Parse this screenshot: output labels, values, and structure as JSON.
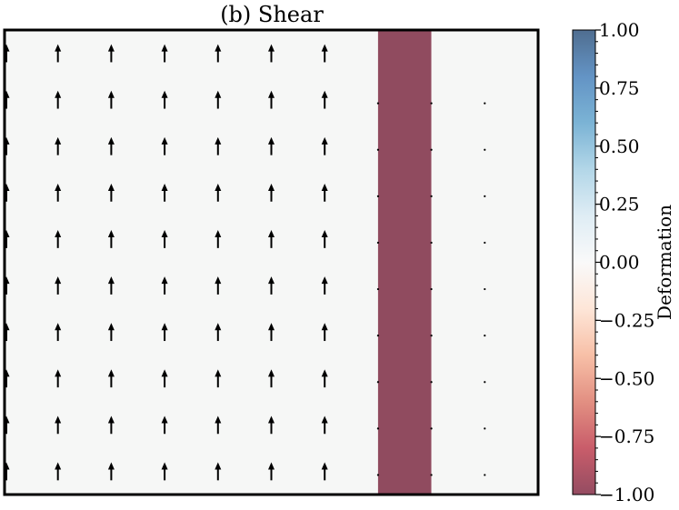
{
  "chart_data": {
    "type": "quiver",
    "title": "(b) Shear",
    "xlabel": "",
    "ylabel": "",
    "background_field": {
      "columns": [
        {
          "x_range": [
            0,
            7
          ],
          "value": 0.0
        },
        {
          "x_range": [
            7,
            8
          ],
          "value": -1.0
        },
        {
          "x_range": [
            8,
            10
          ],
          "value": 0.0
        }
      ]
    },
    "xlim": [
      0,
      10
    ],
    "ylim": [
      0,
      10
    ],
    "quiver": {
      "x": [
        0,
        1,
        2,
        3,
        4,
        5,
        6,
        7,
        8,
        9
      ],
      "y": [
        0.5,
        1.5,
        2.5,
        3.5,
        4.5,
        5.5,
        6.5,
        7.5,
        8.5,
        9.5
      ],
      "u": [
        0,
        0,
        0,
        0,
        0,
        0,
        0,
        0,
        0,
        0
      ],
      "v_by_column": [
        1,
        1,
        1,
        1,
        1,
        1,
        1,
        0,
        0,
        0
      ],
      "rows_shown_per_column": [
        10,
        10,
        10,
        10,
        10,
        10,
        10,
        9,
        9,
        9
      ]
    },
    "colorbar": {
      "label": "Deformation",
      "range": [
        -1.0,
        1.0
      ],
      "ticks": [
        "−1.00",
        "−0.75",
        "−0.50",
        "−0.25",
        "0.00",
        "0.25",
        "0.50",
        "0.75",
        "1.00"
      ],
      "tick_values": [
        -1.0,
        -0.75,
        -0.5,
        -0.25,
        0.0,
        0.25,
        0.5,
        0.75,
        1.0
      ]
    },
    "colormap": {
      "name": "RdBu",
      "alpha": 0.7,
      "stops": [
        "#67001f",
        "#b2182b",
        "#d6604d",
        "#f4a582",
        "#fddbc7",
        "#f7f7f7",
        "#d1e5f0",
        "#92c5de",
        "#4393c3",
        "#2166ac",
        "#053061"
      ]
    },
    "colors": {
      "zero_fill": "#f6f7f6",
      "neg_one_fill": "#904b5f",
      "arrow": "#000000"
    }
  }
}
